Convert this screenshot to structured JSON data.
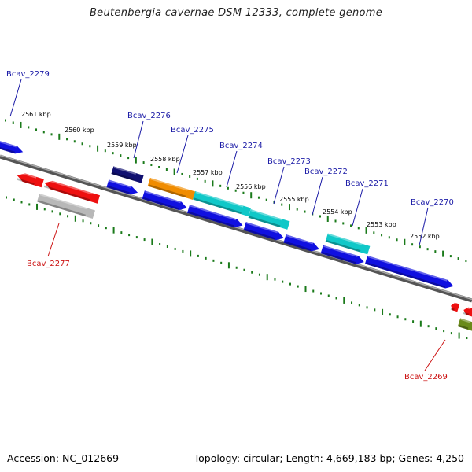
{
  "title": "Beutenbergia cavernae DSM 12333, complete genome",
  "footer": {
    "accession_label": "Accession: NC_012669",
    "summary": "Topology: circular; Length: 4,669,183 bp; Genes: 4,250"
  },
  "colors": {
    "backbone": "#7f7f7f",
    "ticks": "#1a7a1a",
    "forward_label": "#1a1aa6",
    "reverse_label": "#cc1111"
  },
  "ticks": [
    {
      "label": "2561 kbp",
      "pos_kbp": 2561
    },
    {
      "label": "2560 kbp",
      "pos_kbp": 2560
    },
    {
      "label": "2559 kbp",
      "pos_kbp": 2559
    },
    {
      "label": "2558 kbp",
      "pos_kbp": 2558
    },
    {
      "label": "2557 kbp",
      "pos_kbp": 2557
    },
    {
      "label": "2556 kbp",
      "pos_kbp": 2556
    },
    {
      "label": "2555 kbp",
      "pos_kbp": 2555
    },
    {
      "label": "2554 kbp",
      "pos_kbp": 2554
    },
    {
      "label": "2553 kbp",
      "pos_kbp": 2553
    },
    {
      "label": "2552 kbp",
      "pos_kbp": 2552
    }
  ],
  "gene_labels": [
    {
      "name": "Bcav_2279",
      "strand": "forward"
    },
    {
      "name": "Bcav_2276",
      "strand": "forward"
    },
    {
      "name": "Bcav_2275",
      "strand": "forward"
    },
    {
      "name": "Bcav_2274",
      "strand": "forward"
    },
    {
      "name": "Bcav_2273",
      "strand": "forward"
    },
    {
      "name": "Bcav_2272",
      "strand": "forward"
    },
    {
      "name": "Bcav_2271",
      "strand": "forward"
    },
    {
      "name": "Bcav_2270",
      "strand": "forward"
    },
    {
      "name": "Bcav_2277",
      "strand": "reverse"
    },
    {
      "name": "Bcav_2269",
      "strand": "reverse"
    }
  ],
  "features": [
    {
      "id": "f-2279",
      "color": "#1010e0"
    },
    {
      "id": "f-2276-top",
      "color": "#101070"
    },
    {
      "id": "f-2276-cds",
      "color": "#1010e0"
    },
    {
      "id": "f-2275-orange",
      "color": "#f08c00"
    },
    {
      "id": "f-2275-cyan",
      "color": "#10c8c8"
    },
    {
      "id": "f-2273-cyan",
      "color": "#10c8c8"
    },
    {
      "id": "f-2271-cyan",
      "color": "#10c8c8"
    },
    {
      "id": "f-cds-a",
      "color": "#1010e0"
    },
    {
      "id": "f-cds-b",
      "color": "#1010e0"
    },
    {
      "id": "f-cds-c",
      "color": "#1010e0"
    },
    {
      "id": "f-cds-d",
      "color": "#1010e0"
    },
    {
      "id": "f-cds-e",
      "color": "#1010e0"
    },
    {
      "id": "f-cds-f",
      "color": "#1010e0"
    },
    {
      "id": "f-2278-red",
      "color": "#ee1010"
    },
    {
      "id": "f-2277-red",
      "color": "#ee1010"
    },
    {
      "id": "f-2277-gray",
      "color": "#b8b8b8"
    },
    {
      "id": "f-2269-red-a",
      "color": "#ee1010"
    },
    {
      "id": "f-2269-red-b",
      "color": "#ee1010"
    },
    {
      "id": "f-2269-olive",
      "color": "#6a8a1a"
    }
  ]
}
